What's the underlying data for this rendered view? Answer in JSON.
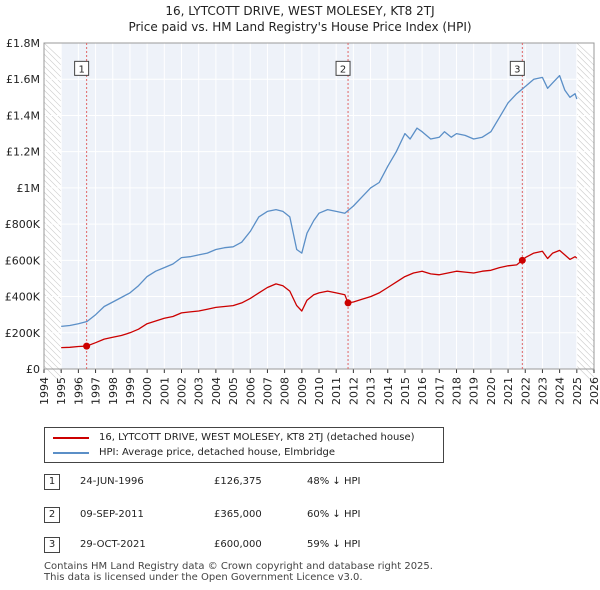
{
  "chart_data": {
    "type": "line",
    "title": "16, LYTCOTT DRIVE, WEST MOLESEY, KT8 2TJ",
    "subtitle": "Price paid vs. HM Land Registry's House Price Index (HPI)",
    "xlabel": "",
    "ylabel": "",
    "xlim": [
      1994,
      2026
    ],
    "ylim": [
      0,
      1800000
    ],
    "x_ticks": [
      1994,
      1995,
      1996,
      1997,
      1998,
      1999,
      2000,
      2001,
      2002,
      2003,
      2004,
      2005,
      2006,
      2007,
      2008,
      2009,
      2010,
      2011,
      2012,
      2013,
      2014,
      2015,
      2016,
      2017,
      2018,
      2019,
      2020,
      2021,
      2022,
      2023,
      2024,
      2025,
      2026
    ],
    "y_ticks": [
      0,
      200000,
      400000,
      600000,
      800000,
      1000000,
      1200000,
      1400000,
      1600000,
      1800000
    ],
    "y_tick_labels": [
      "£0",
      "£200K",
      "£400K",
      "£600K",
      "£800K",
      "£1M",
      "£1.2M",
      "£1.4M",
      "£1.6M",
      "£1.8M"
    ],
    "grid": true,
    "shaded_ranges": [
      [
        1994,
        1995
      ],
      [
        2025.0,
        2026
      ]
    ],
    "series": [
      {
        "name": "16, LYTCOTT DRIVE, WEST MOLESEY, KT8 2TJ (detached house)",
        "color": "#cc0000",
        "x": [
          1995.0,
          1995.5,
          1996.0,
          1996.48,
          1997.0,
          1997.5,
          1998.0,
          1998.5,
          1999.0,
          1999.5,
          2000.0,
          2000.5,
          2001.0,
          2001.5,
          2002.0,
          2002.5,
          2003.0,
          2003.5,
          2004.0,
          2004.5,
          2005.0,
          2005.5,
          2006.0,
          2006.5,
          2007.0,
          2007.5,
          2007.9,
          2008.3,
          2008.7,
          2009.0,
          2009.3,
          2009.7,
          2010.0,
          2010.5,
          2011.0,
          2011.5,
          2011.69,
          2012.0,
          2012.5,
          2013.0,
          2013.5,
          2014.0,
          2014.5,
          2015.0,
          2015.5,
          2016.0,
          2016.5,
          2017.0,
          2017.5,
          2018.0,
          2018.5,
          2019.0,
          2019.5,
          2020.0,
          2020.5,
          2021.0,
          2021.5,
          2021.83,
          2022.0,
          2022.5,
          2023.0,
          2023.3,
          2023.6,
          2024.0,
          2024.3,
          2024.6,
          2024.9,
          2025.0
        ],
        "values": [
          118000,
          120000,
          124000,
          126375,
          145000,
          165000,
          175000,
          185000,
          200000,
          220000,
          250000,
          265000,
          280000,
          290000,
          310000,
          315000,
          320000,
          330000,
          340000,
          345000,
          350000,
          365000,
          390000,
          420000,
          450000,
          470000,
          460000,
          430000,
          350000,
          320000,
          380000,
          410000,
          420000,
          430000,
          420000,
          410000,
          365000,
          370000,
          385000,
          400000,
          420000,
          450000,
          480000,
          510000,
          530000,
          540000,
          525000,
          520000,
          530000,
          540000,
          535000,
          530000,
          540000,
          545000,
          560000,
          570000,
          575000,
          600000,
          615000,
          640000,
          650000,
          610000,
          640000,
          655000,
          630000,
          605000,
          620000,
          612000
        ]
      },
      {
        "name": "HPI: Average price, detached house, Elmbridge",
        "color": "#5b8fc7",
        "x": [
          1995.0,
          1995.5,
          1996.0,
          1996.5,
          1997.0,
          1997.5,
          1998.0,
          1998.5,
          1999.0,
          1999.5,
          2000.0,
          2000.5,
          2001.0,
          2001.5,
          2002.0,
          2002.5,
          2003.0,
          2003.5,
          2004.0,
          2004.5,
          2005.0,
          2005.5,
          2006.0,
          2006.5,
          2007.0,
          2007.5,
          2007.9,
          2008.3,
          2008.7,
          2009.0,
          2009.3,
          2009.7,
          2010.0,
          2010.5,
          2011.0,
          2011.5,
          2012.0,
          2012.5,
          2013.0,
          2013.5,
          2014.0,
          2014.5,
          2015.0,
          2015.3,
          2015.7,
          2016.0,
          2016.5,
          2017.0,
          2017.3,
          2017.7,
          2018.0,
          2018.5,
          2019.0,
          2019.5,
          2020.0,
          2020.5,
          2021.0,
          2021.5,
          2022.0,
          2022.5,
          2023.0,
          2023.3,
          2023.6,
          2024.0,
          2024.3,
          2024.6,
          2024.9,
          2025.0
        ],
        "values": [
          235000,
          240000,
          250000,
          262000,
          300000,
          345000,
          370000,
          395000,
          420000,
          460000,
          510000,
          540000,
          560000,
          580000,
          615000,
          620000,
          630000,
          640000,
          660000,
          670000,
          675000,
          700000,
          760000,
          840000,
          870000,
          880000,
          870000,
          840000,
          660000,
          640000,
          750000,
          820000,
          860000,
          880000,
          870000,
          860000,
          900000,
          950000,
          1000000,
          1030000,
          1120000,
          1200000,
          1300000,
          1270000,
          1330000,
          1310000,
          1270000,
          1280000,
          1310000,
          1280000,
          1300000,
          1290000,
          1270000,
          1280000,
          1310000,
          1390000,
          1470000,
          1520000,
          1560000,
          1600000,
          1610000,
          1550000,
          1580000,
          1620000,
          1540000,
          1500000,
          1520000,
          1490000
        ]
      }
    ],
    "sales": [
      {
        "label": "1",
        "x": 1996.48,
        "value": 126375
      },
      {
        "label": "2",
        "x": 2011.69,
        "value": 365000
      },
      {
        "label": "3",
        "x": 2021.83,
        "value": 600000
      }
    ],
    "marker_box_value": 1660000
  },
  "legend": {
    "items": [
      {
        "label": "16, LYTCOTT DRIVE, WEST MOLESEY, KT8 2TJ (detached house)",
        "color": "#cc0000"
      },
      {
        "label": "HPI: Average price, detached house, Elmbridge",
        "color": "#5b8fc7"
      }
    ]
  },
  "sales_table": [
    {
      "num": "1",
      "date": "24-JUN-1996",
      "price": "£126,375",
      "hpi": "48% ↓ HPI"
    },
    {
      "num": "2",
      "date": "09-SEP-2011",
      "price": "£365,000",
      "hpi": "60% ↓ HPI"
    },
    {
      "num": "3",
      "date": "29-OCT-2021",
      "price": "£600,000",
      "hpi": "59% ↓ HPI"
    }
  ],
  "footer": {
    "line1": "Contains HM Land Registry data © Crown copyright and database right 2025.",
    "line2": "This data is licensed under the Open Government Licence v3.0."
  }
}
